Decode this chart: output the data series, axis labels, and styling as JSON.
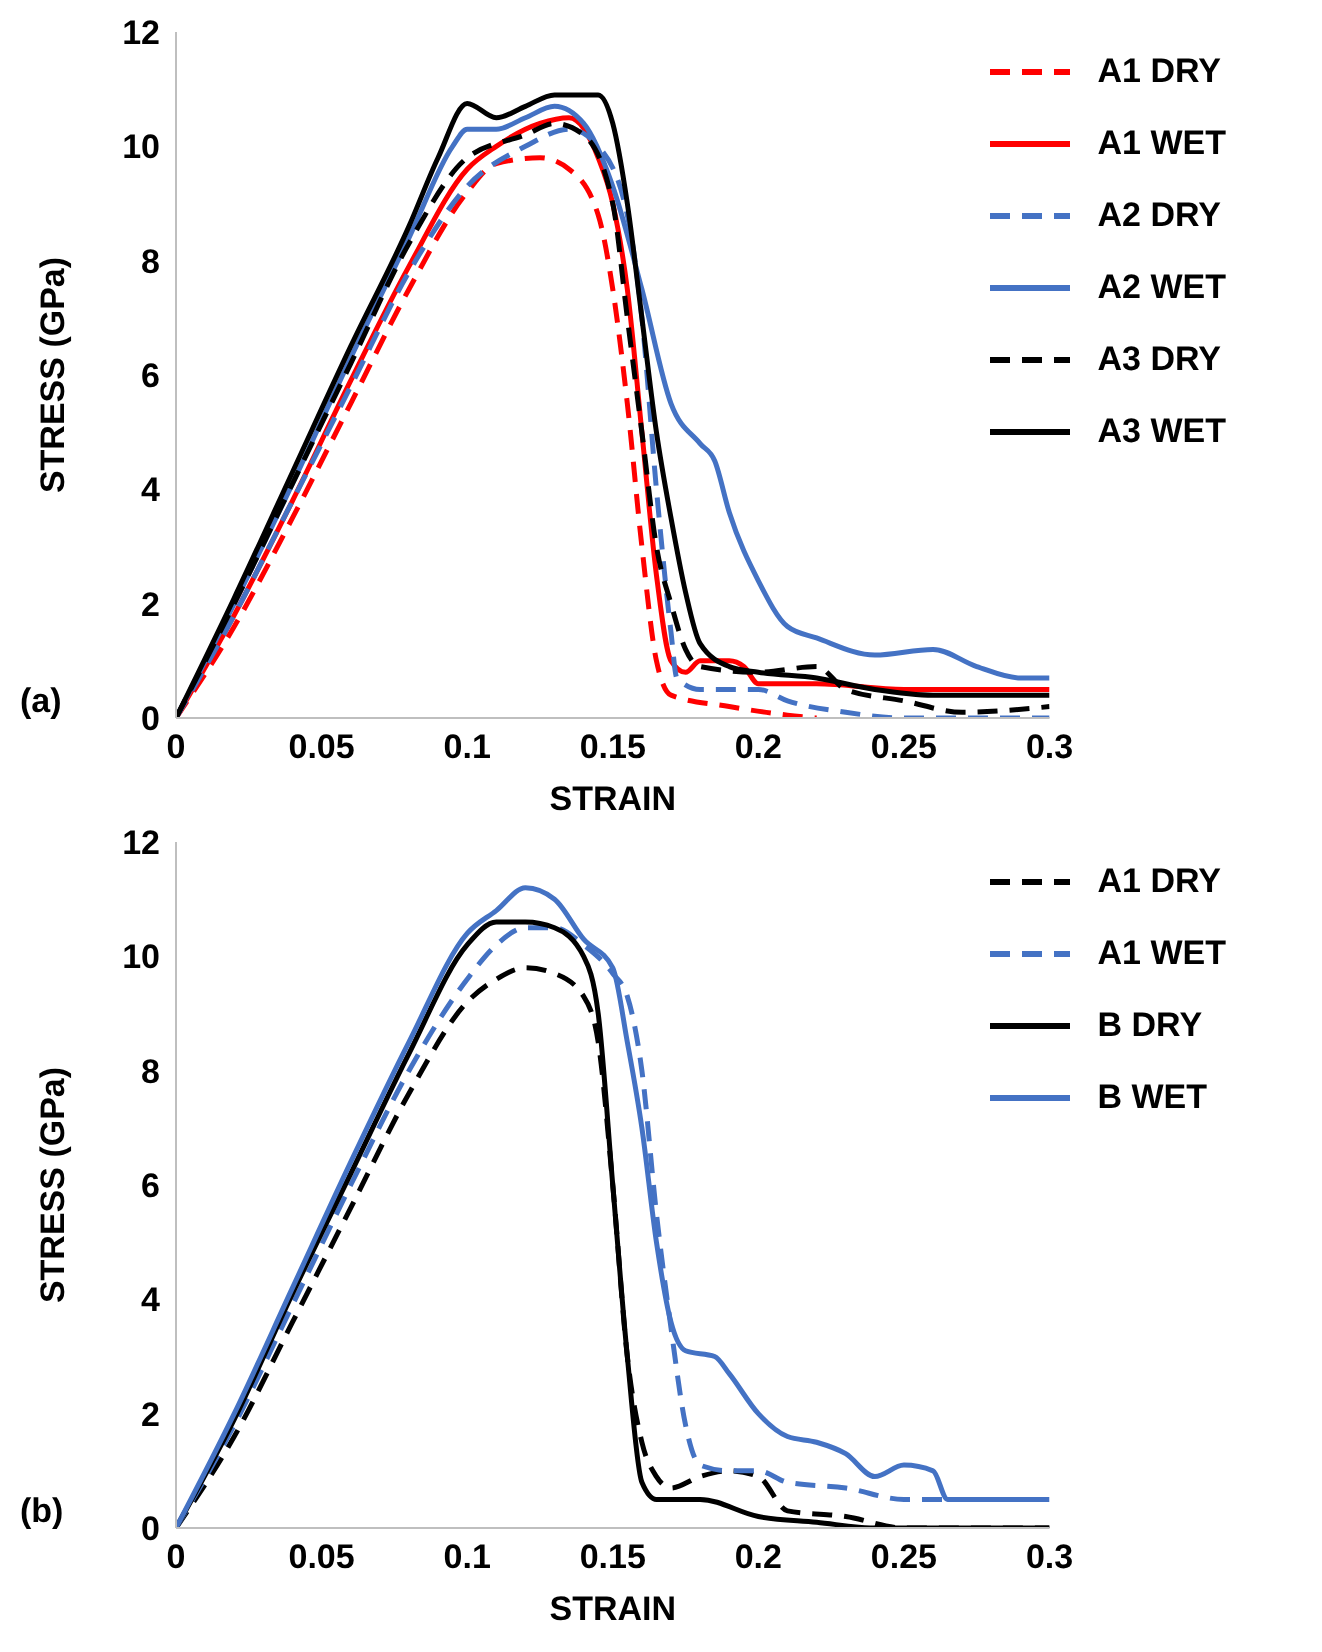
{
  "chart_data": [
    {
      "type": "line",
      "xlabel": "STRAIN",
      "ylabel": "STRESS (GPa)",
      "annotations": [
        "(a)"
      ],
      "xlim": [
        0,
        0.3
      ],
      "xticks": [
        0,
        0.05,
        0.1,
        0.15,
        0.2,
        0.25,
        0.3
      ],
      "ylim": [
        0,
        12
      ],
      "yticks": [
        0,
        2,
        4,
        6,
        8,
        10,
        12
      ],
      "grid": false,
      "legend": "top right",
      "marker": "none",
      "series": [
        {
          "name": "A1 DRY",
          "color": "#ff0000",
          "line_style": "dashed",
          "x": [
            0,
            0.02,
            0.04,
            0.06,
            0.08,
            0.1,
            0.11,
            0.125,
            0.135,
            0.145,
            0.15,
            0.155,
            0.16,
            0.165,
            0.17,
            0.19,
            0.21,
            0.22
          ],
          "values": [
            0,
            1.6,
            3.5,
            5.5,
            7.5,
            9.2,
            9.7,
            9.8,
            9.6,
            8.8,
            7.5,
            5.5,
            3.0,
            1.0,
            0.4,
            0.2,
            0.05,
            0
          ]
        },
        {
          "name": "A1 WET",
          "color": "#ff0000",
          "line_style": "solid",
          "x": [
            0,
            0.02,
            0.04,
            0.06,
            0.08,
            0.1,
            0.11,
            0.125,
            0.135,
            0.145,
            0.15,
            0.155,
            0.16,
            0.165,
            0.17,
            0.175,
            0.18,
            0.19,
            0.195,
            0.2,
            0.22,
            0.25,
            0.3
          ],
          "values": [
            0,
            1.8,
            3.8,
            5.9,
            7.9,
            9.6,
            10.0,
            10.4,
            10.5,
            9.8,
            9.0,
            7.5,
            5.0,
            2.5,
            1.0,
            0.8,
            1.0,
            1.0,
            0.9,
            0.6,
            0.6,
            0.5,
            0.5
          ]
        },
        {
          "name": "A2 DRY",
          "color": "#4472c4",
          "line_style": "dashed",
          "x": [
            0,
            0.02,
            0.04,
            0.06,
            0.08,
            0.1,
            0.12,
            0.135,
            0.145,
            0.155,
            0.16,
            0.165,
            0.17,
            0.172,
            0.18,
            0.2,
            0.21,
            0.23,
            0.25,
            0.3
          ],
          "values": [
            0,
            1.8,
            3.8,
            5.8,
            7.8,
            9.3,
            10.0,
            10.3,
            10.0,
            8.8,
            7.0,
            4.0,
            1.5,
            0.7,
            0.5,
            0.5,
            0.3,
            0.1,
            0,
            0
          ]
        },
        {
          "name": "A2 WET",
          "color": "#4472c4",
          "line_style": "solid",
          "x": [
            0,
            0.02,
            0.04,
            0.06,
            0.08,
            0.095,
            0.1,
            0.11,
            0.12,
            0.13,
            0.14,
            0.15,
            0.16,
            0.17,
            0.18,
            0.185,
            0.19,
            0.2,
            0.21,
            0.22,
            0.24,
            0.26,
            0.275,
            0.29,
            0.3
          ],
          "values": [
            0,
            2.0,
            4.1,
            6.3,
            8.4,
            10.0,
            10.3,
            10.3,
            10.5,
            10.7,
            10.4,
            9.3,
            7.5,
            5.5,
            4.8,
            4.5,
            3.6,
            2.4,
            1.6,
            1.4,
            1.1,
            1.2,
            0.9,
            0.7,
            0.7
          ]
        },
        {
          "name": "A3 DRY",
          "color": "#000000",
          "line_style": "dashed",
          "x": [
            0,
            0.02,
            0.04,
            0.06,
            0.08,
            0.1,
            0.12,
            0.13,
            0.14,
            0.15,
            0.155,
            0.16,
            0.165,
            0.17,
            0.175,
            0.18,
            0.2,
            0.22,
            0.23,
            0.25,
            0.27,
            0.3
          ],
          "values": [
            0,
            2.0,
            4.1,
            6.2,
            8.3,
            9.8,
            10.2,
            10.4,
            10.2,
            9.0,
            7.0,
            5.0,
            3.0,
            2.0,
            1.2,
            0.9,
            0.8,
            0.9,
            0.5,
            0.3,
            0.1,
            0.2
          ]
        },
        {
          "name": "A3 WET",
          "color": "#000000",
          "line_style": "solid",
          "x": [
            0,
            0.02,
            0.04,
            0.06,
            0.08,
            0.09,
            0.1,
            0.11,
            0.12,
            0.13,
            0.145,
            0.15,
            0.155,
            0.16,
            0.165,
            0.17,
            0.175,
            0.18,
            0.19,
            0.2,
            0.22,
            0.24,
            0.26,
            0.3
          ],
          "values": [
            0,
            2.1,
            4.3,
            6.5,
            8.6,
            9.8,
            10.75,
            10.5,
            10.7,
            10.9,
            10.9,
            10.4,
            9.0,
            7.0,
            5.0,
            3.5,
            2.2,
            1.3,
            0.9,
            0.8,
            0.7,
            0.5,
            0.4,
            0.4
          ]
        }
      ]
    },
    {
      "type": "line",
      "xlabel": "STRAIN",
      "ylabel": "STRESS (GPa)",
      "annotations": [
        "(b)"
      ],
      "xlim": [
        0,
        0.3
      ],
      "xticks": [
        0,
        0.05,
        0.1,
        0.15,
        0.2,
        0.25,
        0.3
      ],
      "ylim": [
        0,
        12
      ],
      "yticks": [
        0,
        2,
        4,
        6,
        8,
        10,
        12
      ],
      "grid": false,
      "legend": "top right",
      "marker": "none",
      "series": [
        {
          "name": "A1 DRY",
          "color": "#000000",
          "line_style": "dashed",
          "x": [
            0,
            0.02,
            0.04,
            0.06,
            0.08,
            0.1,
            0.11,
            0.12,
            0.13,
            0.14,
            0.145,
            0.15,
            0.155,
            0.16,
            0.165,
            0.17,
            0.18,
            0.19,
            0.2,
            0.21,
            0.23,
            0.25,
            0.3
          ],
          "values": [
            0,
            1.6,
            3.6,
            5.6,
            7.6,
            9.2,
            9.6,
            9.8,
            9.7,
            9.3,
            8.5,
            6.0,
            3.0,
            1.5,
            0.9,
            0.7,
            0.9,
            1.0,
            0.9,
            0.3,
            0.2,
            0,
            0
          ]
        },
        {
          "name": "A1 WET",
          "color": "#4472c4",
          "line_style": "dashed",
          "x": [
            0,
            0.02,
            0.04,
            0.06,
            0.08,
            0.1,
            0.11,
            0.12,
            0.13,
            0.14,
            0.15,
            0.155,
            0.16,
            0.165,
            0.17,
            0.175,
            0.18,
            0.19,
            0.2,
            0.21,
            0.23,
            0.25,
            0.27,
            0.3
          ],
          "values": [
            0,
            1.8,
            3.9,
            6.0,
            8.0,
            9.6,
            10.2,
            10.5,
            10.5,
            10.2,
            9.7,
            9.3,
            8.0,
            5.5,
            3.5,
            1.8,
            1.1,
            1.0,
            1.0,
            0.8,
            0.7,
            0.5,
            0.5,
            0.5
          ]
        },
        {
          "name": "B DRY",
          "color": "#000000",
          "line_style": "solid",
          "x": [
            0,
            0.02,
            0.04,
            0.06,
            0.08,
            0.1,
            0.11,
            0.12,
            0.13,
            0.14,
            0.145,
            0.15,
            0.155,
            0.16,
            0.165,
            0.18,
            0.2,
            0.22,
            0.24,
            0.3
          ],
          "values": [
            0,
            1.9,
            4.1,
            6.2,
            8.3,
            10.2,
            10.6,
            10.6,
            10.5,
            10.0,
            9.0,
            6.0,
            3.0,
            0.8,
            0.5,
            0.5,
            0.2,
            0.1,
            0,
            0
          ]
        },
        {
          "name": "B WET",
          "color": "#4472c4",
          "line_style": "solid",
          "x": [
            0,
            0.02,
            0.04,
            0.06,
            0.08,
            0.1,
            0.11,
            0.12,
            0.13,
            0.14,
            0.15,
            0.155,
            0.16,
            0.165,
            0.17,
            0.175,
            0.185,
            0.19,
            0.2,
            0.21,
            0.22,
            0.23,
            0.24,
            0.25,
            0.26,
            0.265,
            0.3
          ],
          "values": [
            0,
            2.0,
            4.2,
            6.4,
            8.5,
            10.4,
            10.8,
            11.2,
            11.0,
            10.3,
            9.8,
            8.5,
            7.0,
            5.0,
            3.6,
            3.1,
            3.0,
            2.7,
            2.0,
            1.6,
            1.5,
            1.3,
            0.9,
            1.1,
            1.0,
            0.5,
            0.5
          ]
        }
      ]
    }
  ]
}
